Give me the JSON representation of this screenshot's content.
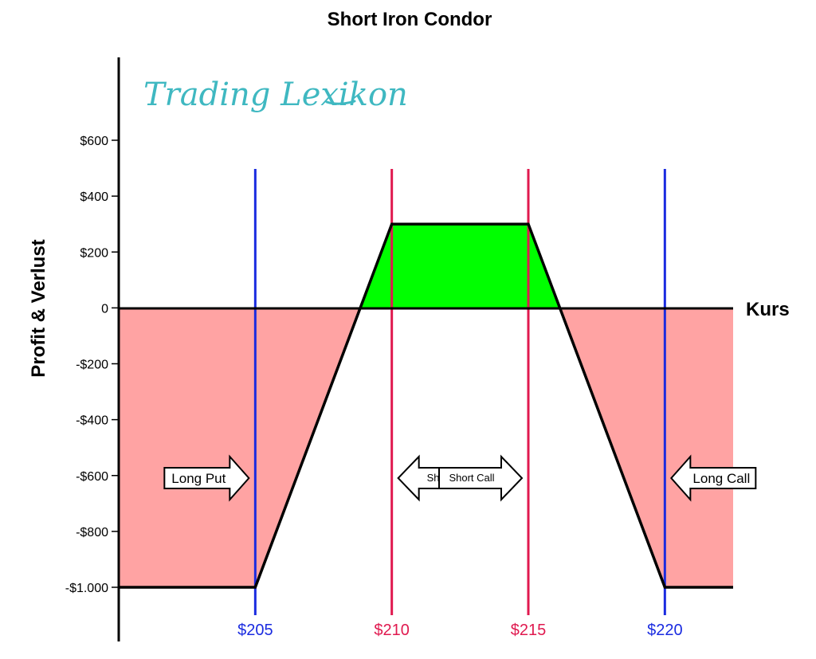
{
  "logo": {
    "text": "Trading Lexikon",
    "color": "#3fb8c1"
  },
  "chart_data": {
    "type": "line",
    "title": "Short Iron Condor",
    "xlabel": "Kurs",
    "ylabel": "Profit & Verlust",
    "ylim": [
      -1000,
      600
    ],
    "yticks": [
      600,
      400,
      200,
      0,
      -200,
      -400,
      -600,
      -800,
      -1000
    ],
    "ytick_labels": [
      "$600",
      "$400",
      "$200",
      "0",
      "-$200",
      "-$400",
      "-$600",
      "-$800",
      "-$1.000"
    ],
    "xlim": [
      200,
      222.5
    ],
    "payoff": {
      "x": [
        200,
        205,
        210,
        215,
        220,
        222.5
      ],
      "y": [
        -1000,
        -1000,
        300,
        300,
        -1000,
        -1000
      ]
    },
    "zero_crossings": [
      208.85,
      216.15
    ],
    "strikes": [
      {
        "price": 205,
        "label": "$205",
        "color": "#1a2be0"
      },
      {
        "price": 210,
        "label": "$210",
        "color": "#e0194f"
      },
      {
        "price": 215,
        "label": "$215",
        "color": "#e0194f"
      },
      {
        "price": 220,
        "label": "$220",
        "color": "#1a2be0"
      }
    ],
    "annotations": [
      {
        "text": "Long Put",
        "direction": "right",
        "strike": 205,
        "size": "large"
      },
      {
        "text": "Short Put",
        "direction": "left",
        "strike": 210,
        "size": "small"
      },
      {
        "text": "Short Call",
        "direction": "right",
        "strike": 215,
        "size": "small"
      },
      {
        "text": "Long Call",
        "direction": "left",
        "strike": 220,
        "size": "large"
      }
    ],
    "colors": {
      "profit": "#00ff00",
      "loss": "#ffa3a3",
      "payoff_line": "#000000",
      "axis": "#000000"
    }
  }
}
